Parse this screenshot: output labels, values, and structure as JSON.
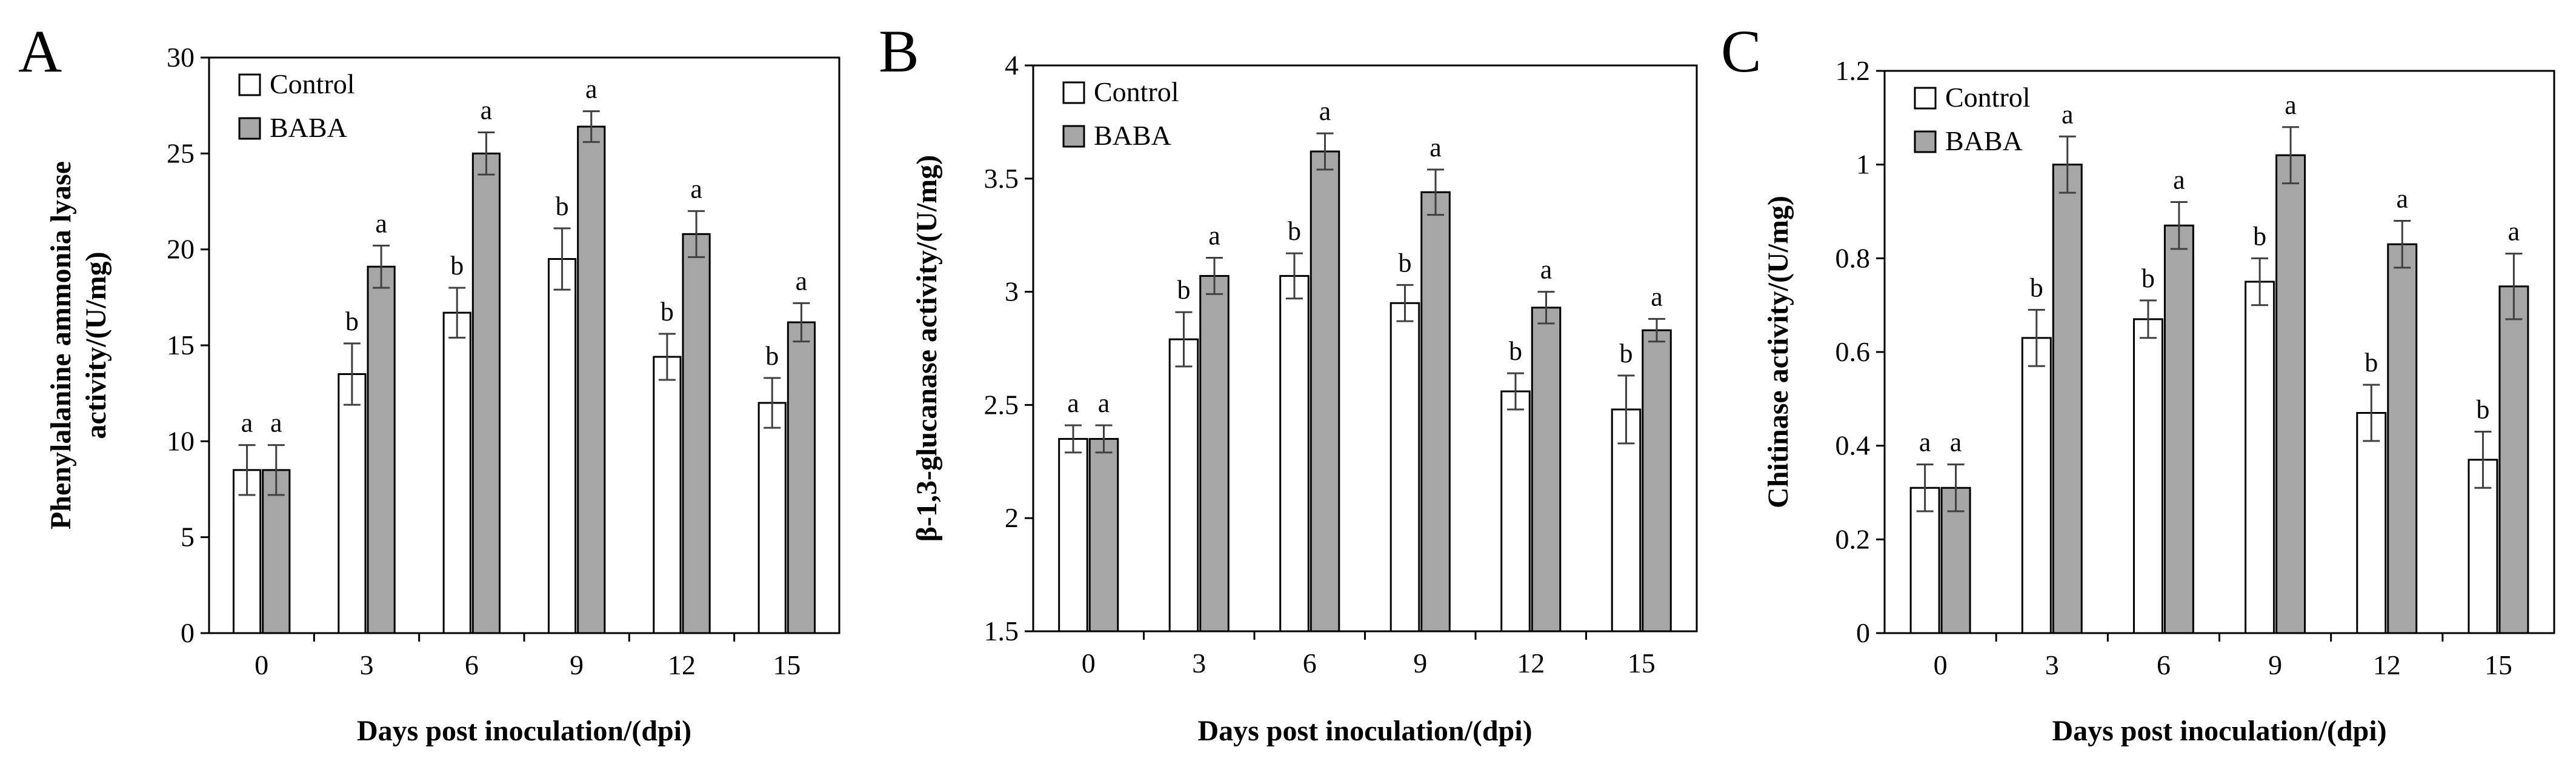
{
  "chart_data": [
    {
      "type": "bar",
      "panel_label": "A",
      "title": "",
      "xlabel": "Days post inoculation/(dpi)",
      "ylabel_lines": [
        "Phenylalanine ammonia lyase",
        "activity/(U/mg)"
      ],
      "ylim": [
        0,
        30
      ],
      "yticks": [
        "0",
        "5",
        "10",
        "15",
        "20",
        "25",
        "30"
      ],
      "categories": [
        "0",
        "3",
        "6",
        "9",
        "12",
        "15"
      ],
      "legend_position": "top-left",
      "series": [
        {
          "name": "Control",
          "color": "#ffffff",
          "values": [
            8.5,
            13.5,
            16.7,
            19.5,
            14.4,
            12.0
          ],
          "errors": [
            1.3,
            1.6,
            1.3,
            1.6,
            1.2,
            1.3
          ],
          "labels": [
            "a",
            "b",
            "b",
            "b",
            "b",
            "b"
          ]
        },
        {
          "name": "BABA",
          "color": "#a6a6a6",
          "values": [
            8.5,
            19.1,
            25.0,
            26.4,
            20.8,
            16.2
          ],
          "errors": [
            1.3,
            1.1,
            1.1,
            0.8,
            1.2,
            1.0
          ],
          "labels": [
            "a",
            "a",
            "a",
            "a",
            "a",
            "a"
          ]
        }
      ]
    },
    {
      "type": "bar",
      "panel_label": "B",
      "title": "",
      "xlabel": "Days post inoculation/(dpi)",
      "ylabel_lines": [
        "β-1,3-glucanase activity/(U/mg)"
      ],
      "ylim": [
        1.5,
        4
      ],
      "yticks": [
        "1.5",
        "2",
        "2.5",
        "3",
        "3.5",
        "4"
      ],
      "categories": [
        "0",
        "3",
        "6",
        "9",
        "12",
        "15"
      ],
      "legend_position": "top-left",
      "series": [
        {
          "name": "Control",
          "color": "#ffffff",
          "values": [
            2.35,
            2.79,
            3.07,
            2.95,
            2.56,
            2.48
          ],
          "errors": [
            0.06,
            0.12,
            0.1,
            0.08,
            0.08,
            0.15
          ],
          "labels": [
            "a",
            "b",
            "b",
            "b",
            "b",
            "b"
          ]
        },
        {
          "name": "BABA",
          "color": "#a6a6a6",
          "values": [
            2.35,
            3.07,
            3.62,
            3.44,
            2.93,
            2.83
          ],
          "errors": [
            0.06,
            0.08,
            0.08,
            0.1,
            0.07,
            0.05
          ],
          "labels": [
            "a",
            "a",
            "a",
            "a",
            "a",
            "a"
          ]
        }
      ]
    },
    {
      "type": "bar",
      "panel_label": "C",
      "title": "",
      "xlabel": "Days post inoculation/(dpi)",
      "ylabel_lines": [
        "Chitinase activity/(U/mg)"
      ],
      "ylim": [
        0,
        1.2
      ],
      "yticks": [
        "0",
        "0.2",
        "0.4",
        "0.6",
        "0.8",
        "1",
        "1.2"
      ],
      "categories": [
        "0",
        "3",
        "6",
        "9",
        "12",
        "15"
      ],
      "legend_position": "top-left",
      "series": [
        {
          "name": "Control",
          "color": "#ffffff",
          "values": [
            0.31,
            0.63,
            0.67,
            0.75,
            0.47,
            0.37
          ],
          "errors": [
            0.05,
            0.06,
            0.04,
            0.05,
            0.06,
            0.06
          ],
          "labels": [
            "a",
            "b",
            "b",
            "b",
            "b",
            "b"
          ]
        },
        {
          "name": "BABA",
          "color": "#a6a6a6",
          "values": [
            0.31,
            1.0,
            0.87,
            1.02,
            0.83,
            0.74
          ],
          "errors": [
            0.05,
            0.06,
            0.05,
            0.06,
            0.05,
            0.07
          ],
          "labels": [
            "a",
            "a",
            "a",
            "a",
            "a",
            "a"
          ]
        }
      ]
    }
  ]
}
